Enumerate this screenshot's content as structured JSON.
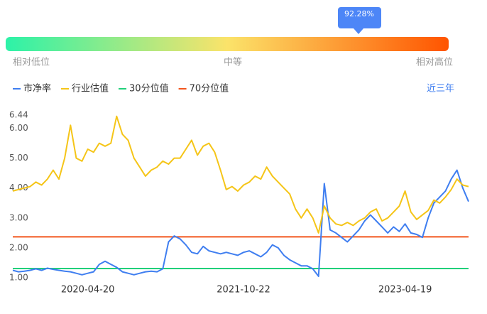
{
  "indicator": {
    "tooltip": "92.28%",
    "low_label": "相对低位",
    "mid_label": "中等",
    "high_label": "相对高位"
  },
  "range_button": "近三年",
  "chart_data": {
    "type": "line",
    "categories": [
      null,
      null,
      null,
      null,
      null,
      null,
      null,
      null,
      null,
      null,
      null,
      null,
      null,
      "2020-04-20",
      null,
      null,
      null,
      null,
      null,
      null,
      null,
      null,
      null,
      null,
      null,
      null,
      null,
      null,
      null,
      null,
      null,
      null,
      null,
      null,
      null,
      null,
      null,
      null,
      null,
      null,
      "2021-10-22",
      null,
      null,
      null,
      null,
      null,
      null,
      null,
      null,
      null,
      null,
      null,
      null,
      null,
      null,
      null,
      null,
      null,
      null,
      null,
      null,
      null,
      null,
      null,
      null,
      null,
      null,
      null,
      "2023-04-19",
      null,
      null,
      null,
      null,
      null,
      null,
      null,
      null,
      null,
      null,
      null
    ],
    "series": [
      {
        "name": "市净率",
        "color": "#3f7ef0",
        "values": [
          1.25,
          1.2,
          1.22,
          1.25,
          1.3,
          1.25,
          1.32,
          1.28,
          1.25,
          1.22,
          1.2,
          1.15,
          1.1,
          1.15,
          1.2,
          1.45,
          1.55,
          1.45,
          1.35,
          1.2,
          1.15,
          1.1,
          1.15,
          1.2,
          1.22,
          1.2,
          1.3,
          2.2,
          2.4,
          2.3,
          2.1,
          1.85,
          1.8,
          2.05,
          1.9,
          1.85,
          1.8,
          1.85,
          1.8,
          1.75,
          1.85,
          1.9,
          1.8,
          1.7,
          1.85,
          2.1,
          2.0,
          1.75,
          1.6,
          1.5,
          1.4,
          1.4,
          1.3,
          1.05,
          4.15,
          2.6,
          2.5,
          2.35,
          2.2,
          2.4,
          2.6,
          2.9,
          3.1,
          2.9,
          2.7,
          2.5,
          2.7,
          2.55,
          2.8,
          2.5,
          2.45,
          2.35,
          3.0,
          3.5,
          3.7,
          3.9,
          4.3,
          4.6,
          4.0,
          3.55
        ]
      },
      {
        "name": "行业估值",
        "color": "#f5c518",
        "values": [
          3.9,
          3.95,
          4.0,
          4.05,
          4.2,
          4.1,
          4.3,
          4.6,
          4.3,
          5.0,
          6.1,
          5.0,
          4.9,
          5.3,
          5.2,
          5.5,
          5.4,
          5.5,
          6.4,
          5.8,
          5.6,
          5.0,
          4.7,
          4.4,
          4.6,
          4.7,
          4.9,
          4.8,
          5.0,
          5.0,
          5.3,
          5.6,
          5.1,
          5.4,
          5.5,
          5.2,
          4.6,
          3.95,
          4.05,
          3.9,
          4.1,
          4.2,
          4.4,
          4.3,
          4.7,
          4.4,
          4.2,
          4.0,
          3.8,
          3.3,
          3.0,
          3.3,
          3.0,
          2.5,
          3.4,
          3.0,
          2.8,
          2.75,
          2.85,
          2.75,
          2.9,
          3.0,
          3.2,
          3.3,
          2.9,
          3.0,
          3.2,
          3.4,
          3.9,
          3.2,
          2.95,
          3.1,
          3.25,
          3.6,
          3.5,
          3.7,
          3.95,
          4.3,
          4.1,
          4.05
        ]
      },
      {
        "name": "30分位值",
        "color": "#21d07a",
        "value": 1.31
      },
      {
        "name": "70分位值",
        "color": "#f2561d",
        "value": 2.37
      }
    ],
    "ylim": [
      1,
      6.44
    ],
    "yticks": [
      {
        "value": 1,
        "label": "1.00"
      },
      {
        "value": 2,
        "label": "2.00"
      },
      {
        "value": 3,
        "label": "3.00"
      },
      {
        "value": 4,
        "label": "4.00"
      },
      {
        "value": 5,
        "label": "5.00"
      },
      {
        "value": 6,
        "label": "6.00"
      },
      6.44
    ]
  }
}
